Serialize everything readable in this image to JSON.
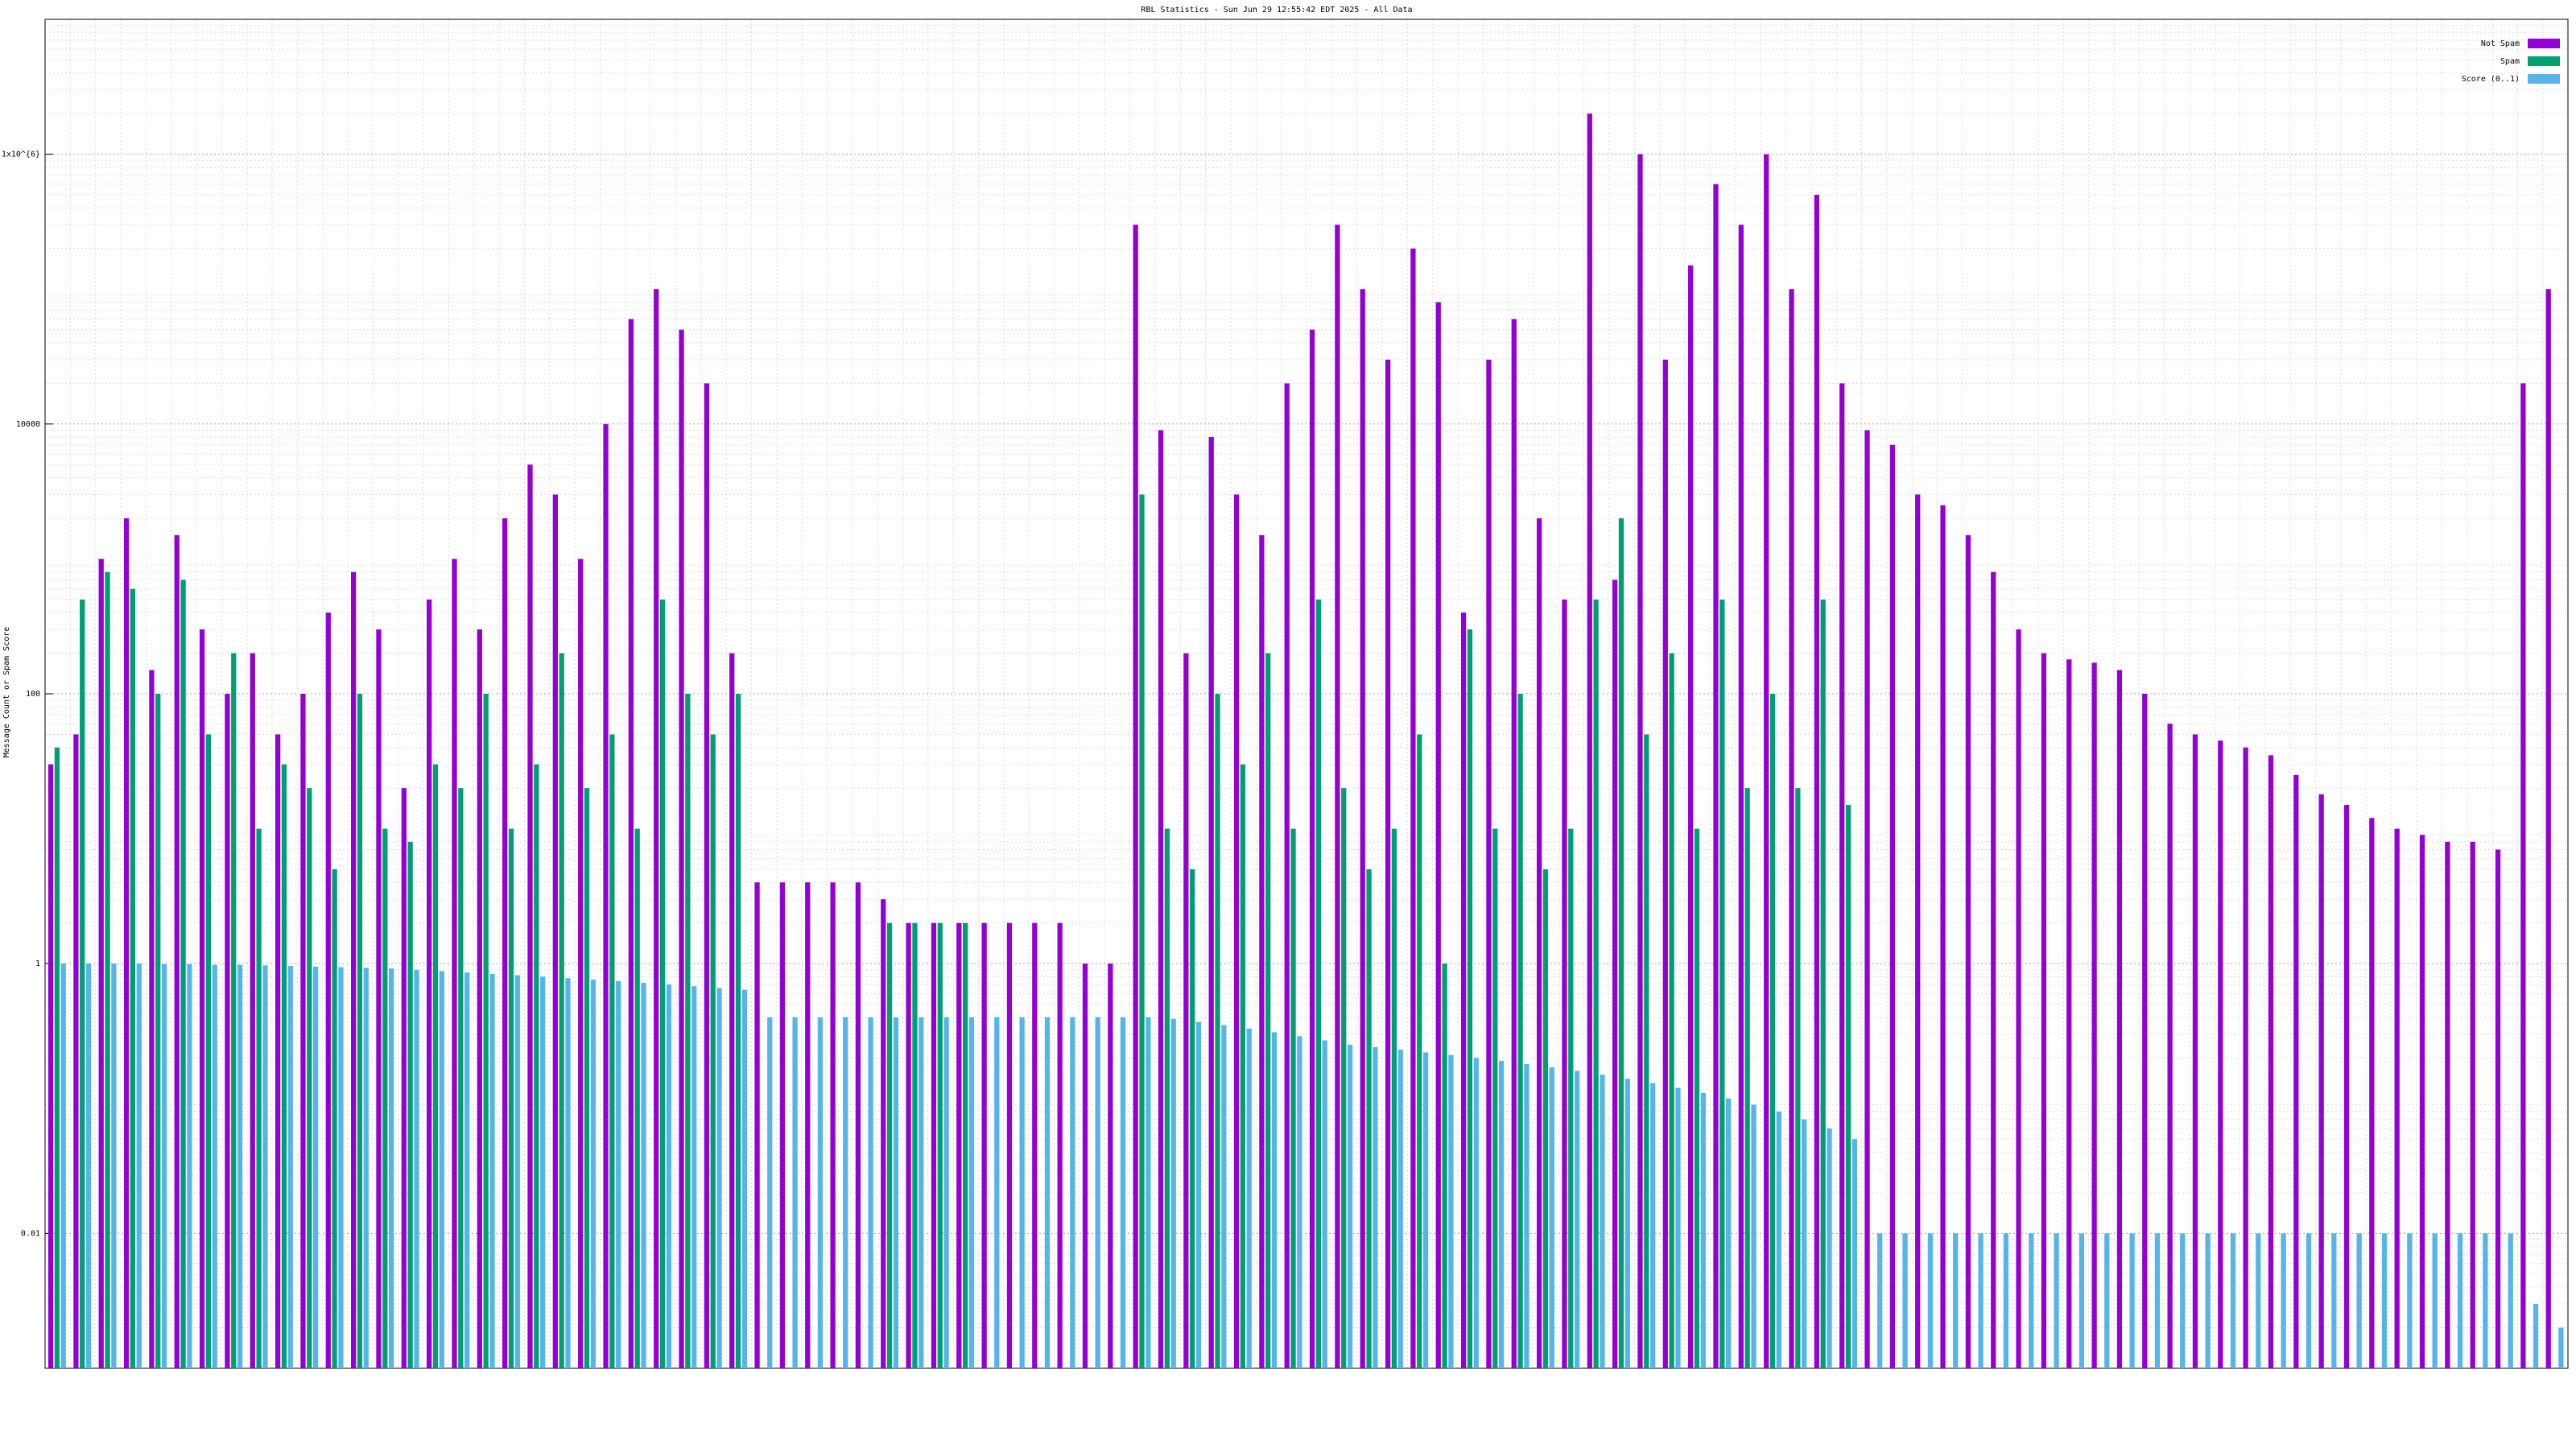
{
  "chart_data": {
    "type": "bar",
    "title": "RBL Statistics - Sun Jun 29 12:55:42 EDT 2025 - All Data",
    "y_label": "Message Count or Spam Score",
    "log_scale": true,
    "grid": true,
    "legend": "top-right",
    "ylim": [
      0.001,
      10000000
    ],
    "yticks": [
      0.01,
      1,
      100,
      10000,
      {
        "value": 1000000,
        "label": "1x10^{6}"
      }
    ],
    "categories": [
      null,
      null,
      null,
      null,
      null,
      null,
      null,
      null,
      null,
      null,
      null,
      null,
      null,
      null,
      null,
      null,
      null,
      null,
      null,
      null,
      null,
      null,
      null,
      null,
      null,
      null,
      null,
      null,
      null,
      null,
      null,
      null,
      null,
      null,
      null,
      null,
      null,
      null,
      null,
      null,
      null,
      null,
      null,
      null,
      null,
      null,
      null,
      null,
      null,
      null,
      null,
      null,
      null,
      null,
      null,
      null,
      null,
      null,
      null,
      null,
      null,
      null,
      null,
      null,
      null,
      null,
      null,
      null,
      null,
      null,
      null,
      null,
      null,
      null,
      null,
      null,
      null,
      null,
      null,
      null,
      null,
      null,
      null,
      null,
      null,
      null,
      null,
      null,
      null,
      null,
      null,
      null,
      null,
      null,
      null,
      null,
      null,
      null,
      null,
      null
    ],
    "series": [
      {
        "name": "Not Spam",
        "color": "#9400d3",
        "values": [
          30,
          50,
          1000,
          2000,
          150,
          1500,
          300,
          100,
          200,
          50,
          100,
          400,
          800,
          300,
          20,
          500,
          1000,
          300,
          2000,
          5000,
          3000,
          1000,
          10000,
          60000,
          100000,
          50000,
          20000,
          200,
          4,
          4,
          4,
          4,
          4,
          3,
          2,
          2,
          2,
          2,
          2,
          2,
          2,
          1,
          1,
          300000,
          9000,
          200,
          8000,
          3000,
          1500,
          20000,
          50000,
          300000,
          100000,
          30000,
          200000,
          80000,
          400,
          30000,
          60000,
          2000,
          500,
          2000000,
          700,
          1000000,
          30000,
          150000,
          600000,
          300000,
          1000000,
          100000,
          500000,
          20000,
          9000,
          7000,
          3000,
          2500,
          1500,
          800,
          300,
          200,
          180,
          170,
          150,
          100,
          60,
          50,
          45,
          40,
          35,
          25,
          18,
          15,
          12,
          10,
          9,
          8,
          8,
          7,
          20000,
          100000
        ]
      },
      {
        "name": "Spam",
        "color": "#009e73",
        "values": [
          40,
          500,
          800,
          600,
          100,
          700,
          50,
          200,
          10,
          30,
          20,
          5,
          100,
          10,
          8,
          30,
          20,
          100,
          10,
          30,
          200,
          20,
          50,
          10,
          500,
          100,
          50,
          100,
          null,
          null,
          null,
          null,
          null,
          2,
          2,
          2,
          2,
          null,
          null,
          null,
          null,
          null,
          null,
          3000,
          10,
          5,
          100,
          30,
          200,
          10,
          500,
          20,
          5,
          10,
          50,
          1,
          300,
          10,
          100,
          5,
          10,
          500,
          2000,
          50,
          200,
          10,
          500,
          20,
          100,
          20,
          500,
          15,
          null,
          null,
          null,
          null,
          null,
          null,
          null,
          null,
          null,
          null,
          null,
          null,
          null,
          null,
          null,
          null,
          null,
          null,
          null,
          null,
          null,
          null,
          null,
          null,
          null,
          null,
          null,
          null
        ]
      },
      {
        "name": "Score (0..1)",
        "color": "#56b4e9",
        "values": [
          1,
          1,
          1,
          1,
          0.99,
          0.99,
          0.98,
          0.98,
          0.97,
          0.96,
          0.95,
          0.94,
          0.93,
          0.92,
          0.9,
          0.88,
          0.86,
          0.84,
          0.82,
          0.8,
          0.78,
          0.76,
          0.74,
          0.72,
          0.7,
          0.68,
          0.66,
          0.64,
          0.4,
          0.4,
          0.4,
          0.4,
          0.4,
          0.4,
          0.4,
          0.4,
          0.4,
          0.4,
          0.4,
          0.4,
          0.4,
          0.4,
          0.4,
          0.4,
          0.39,
          0.37,
          0.35,
          0.33,
          0.31,
          0.29,
          0.27,
          0.25,
          0.24,
          0.23,
          0.22,
          0.21,
          0.2,
          0.19,
          0.18,
          0.17,
          0.16,
          0.15,
          0.14,
          0.13,
          0.12,
          0.11,
          0.1,
          0.09,
          0.08,
          0.07,
          0.06,
          0.05,
          0.01,
          0.01,
          0.01,
          0.01,
          0.01,
          0.01,
          0.01,
          0.01,
          0.01,
          0.01,
          0.01,
          0.01,
          0.01,
          0.01,
          0.01,
          0.01,
          0.01,
          0.01,
          0.01,
          0.01,
          0.01,
          0.01,
          0.01,
          0.01,
          0.01,
          0.01,
          0.003,
          0.002
        ]
      }
    ]
  }
}
